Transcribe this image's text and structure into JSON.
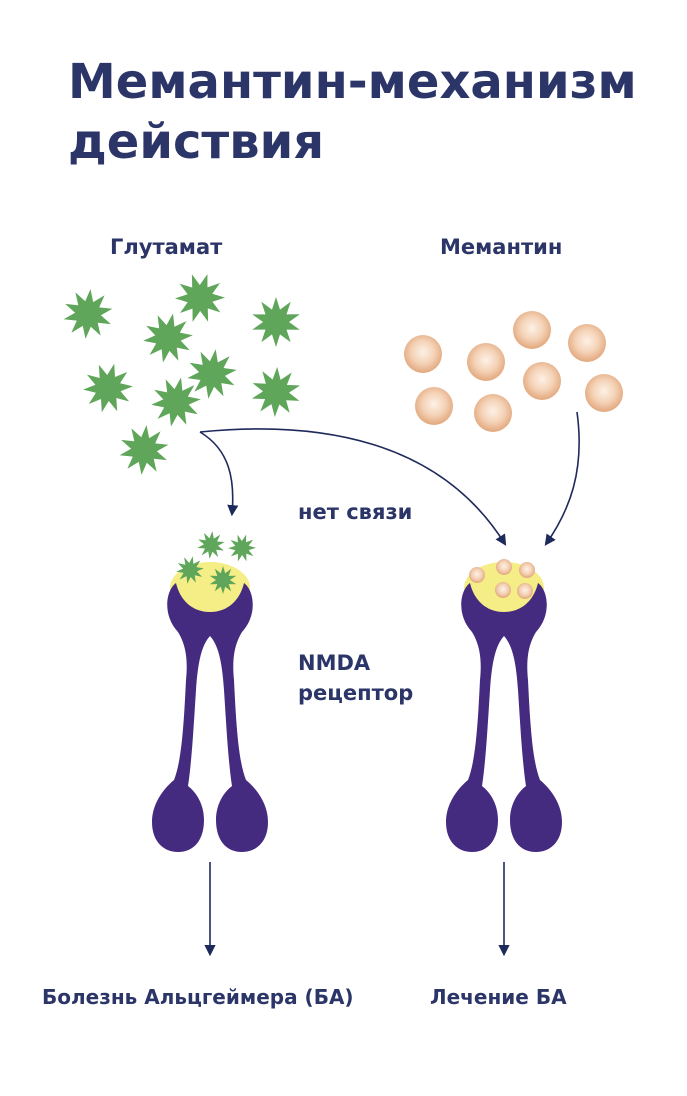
{
  "title": "Мемантин-механизм действия",
  "labels": {
    "glutamate": "Глутамат",
    "memantine": "Мемантин",
    "no_binding": "нет связи",
    "nmda_line1": "NMDA",
    "nmda_line2": "рецептор",
    "left_outcome": "Болезнь Альцгеймера (БА)",
    "right_outcome": "Лечение БА"
  },
  "colors": {
    "text": "#2b3568",
    "arrow": "#1f2a5c",
    "glutamate": "#5fa65a",
    "memantine_outer": "#e9b792",
    "memantine_inner": "#fbe9dc",
    "receptor": "#452b80",
    "binding_site": "#f5ed85"
  },
  "icons": [
    "glutamate-star-icon",
    "memantine-ball-icon",
    "nmda-receptor-icon"
  ]
}
